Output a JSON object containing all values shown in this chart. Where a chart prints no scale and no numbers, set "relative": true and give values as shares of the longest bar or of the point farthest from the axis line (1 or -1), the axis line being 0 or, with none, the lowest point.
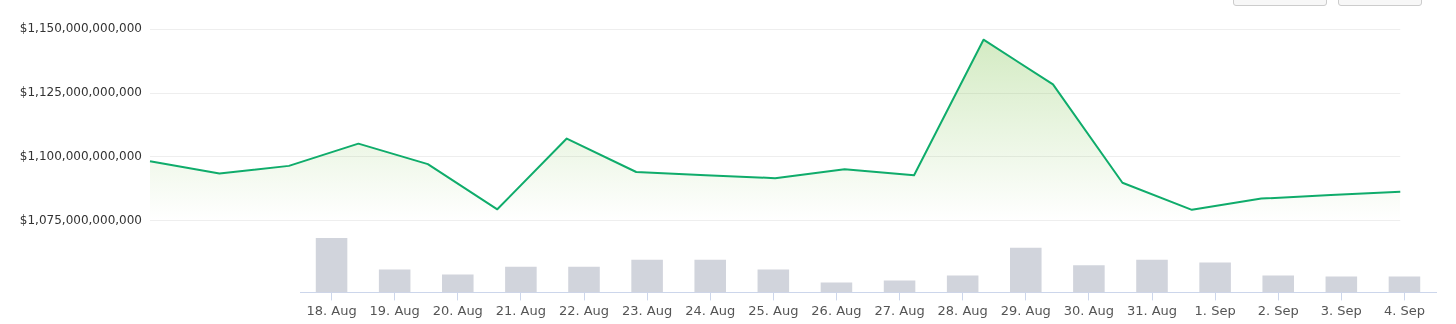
{
  "chart_data": [
    {
      "type": "area",
      "categories": [
        null,
        null,
        null,
        null,
        null,
        null,
        null,
        null,
        null,
        null,
        null,
        null,
        null,
        null,
        null,
        null,
        null,
        null,
        null
      ],
      "series": [
        {
          "color": "#0fac6b",
          "values": [
            1098300000000,
            1093500000000,
            1096500000000,
            1105200000000,
            1097200000000,
            1079500000000,
            1107200000000,
            1094100000000,
            1092800000000,
            1091700000000,
            1095200000000,
            1092800000000,
            1145900000000,
            1128400000000,
            1089900000000,
            1079300000000,
            1083700000000,
            1085100000000,
            1086400000000
          ]
        }
      ],
      "ylim": [
        1075000000000,
        1150000000000
      ],
      "yticks": [
        {
          "value": 1075000000000,
          "label": "$1,075,000,000,000"
        },
        {
          "value": 1100000000000,
          "label": "$1,100,000,000,000"
        },
        {
          "value": 1125000000000,
          "label": "$1,125,000,000,000"
        },
        {
          "value": 1150000000000,
          "label": "$1,150,000,000,000"
        }
      ],
      "grid": "y",
      "tick_labels": "y",
      "legend": false,
      "marker": "none"
    },
    {
      "type": "bar",
      "relative": true,
      "categories": [
        "18. Aug",
        "19. Aug",
        "20. Aug",
        "21. Aug",
        "22. Aug",
        "23. Aug",
        "24. Aug",
        "25. Aug",
        "26. Aug",
        "27. Aug",
        "28. Aug",
        "29. Aug",
        "30. Aug",
        "31. Aug",
        "1. Sep",
        "2. Sep",
        "3. Sep",
        "4. Sep"
      ],
      "values": [
        1,
        0.42,
        0.33,
        0.47,
        0.47,
        0.6,
        0.6,
        0.42,
        0.18,
        0.22,
        0.31,
        0.82,
        0.5,
        0.6,
        0.55,
        0.31,
        0.29,
        0.29
      ],
      "color": "#d1d4dc",
      "tick_labels": "x",
      "legend": false
    }
  ]
}
